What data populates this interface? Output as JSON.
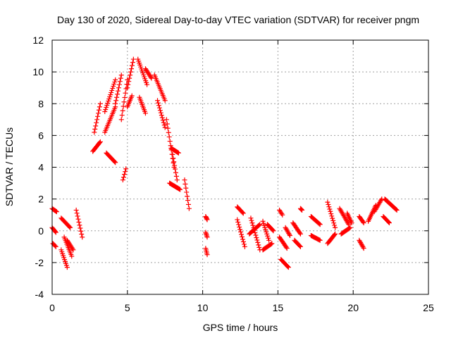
{
  "chart_data": {
    "type": "scatter",
    "title": "Day 130 of 2020, Sidereal Day-to-day VTEC variation (SDTVAR) for receiver pngm",
    "xlabel": "GPS time / hours",
    "ylabel": "SDTVAR / TECUs",
    "xlim": [
      0,
      25
    ],
    "ylim": [
      -4,
      12
    ],
    "xticks": [
      0,
      5,
      10,
      15,
      20,
      25
    ],
    "yticks": [
      -4,
      -2,
      0,
      2,
      4,
      6,
      8,
      10,
      12
    ],
    "grid": true,
    "marker": "+",
    "color": "#ff0000",
    "segments": [
      {
        "x": [
          0.0,
          0.3
        ],
        "y": [
          1.4,
          1.2
        ]
      },
      {
        "x": [
          0.0,
          0.25
        ],
        "y": [
          0.2,
          -0.1
        ]
      },
      {
        "x": [
          0.05,
          0.25
        ],
        "y": [
          -0.8,
          -1.0
        ]
      },
      {
        "x": [
          0.6,
          1.2
        ],
        "y": [
          0.8,
          0.2
        ]
      },
      {
        "x": [
          0.6,
          1.0
        ],
        "y": [
          -1.2,
          -2.3
        ]
      },
      {
        "x": [
          0.8,
          1.3
        ],
        "y": [
          -0.4,
          -1.6
        ]
      },
      {
        "x": [
          1.0,
          1.4
        ],
        "y": [
          -0.6,
          -1.2
        ]
      },
      {
        "x": [
          1.6,
          2.0
        ],
        "y": [
          1.3,
          -0.4
        ]
      },
      {
        "x": [
          2.7,
          3.2
        ],
        "y": [
          5.0,
          5.6
        ]
      },
      {
        "x": [
          2.8,
          3.2
        ],
        "y": [
          6.2,
          8.0
        ]
      },
      {
        "x": [
          3.5,
          4.2
        ],
        "y": [
          7.5,
          9.5
        ]
      },
      {
        "x": [
          3.5,
          4.2
        ],
        "y": [
          6.2,
          7.8
        ]
      },
      {
        "x": [
          3.6,
          4.2
        ],
        "y": [
          4.9,
          4.3
        ]
      },
      {
        "x": [
          4.2,
          4.6
        ],
        "y": [
          8.0,
          9.8
        ]
      },
      {
        "x": [
          4.6,
          5.0
        ],
        "y": [
          7.0,
          9.5
        ]
      },
      {
        "x": [
          4.7,
          4.9
        ],
        "y": [
          3.2,
          3.9
        ]
      },
      {
        "x": [
          5.0,
          5.4
        ],
        "y": [
          9.0,
          10.8
        ]
      },
      {
        "x": [
          5.0,
          5.3
        ],
        "y": [
          7.8,
          8.5
        ]
      },
      {
        "x": [
          5.7,
          6.3
        ],
        "y": [
          10.8,
          9.2
        ]
      },
      {
        "x": [
          5.8,
          6.2
        ],
        "y": [
          8.4,
          7.4
        ]
      },
      {
        "x": [
          6.2,
          6.6
        ],
        "y": [
          10.2,
          9.6
        ]
      },
      {
        "x": [
          6.8,
          7.5
        ],
        "y": [
          9.8,
          8.2
        ]
      },
      {
        "x": [
          7.0,
          7.5
        ],
        "y": [
          8.2,
          6.5
        ]
      },
      {
        "x": [
          7.6,
          8.1
        ],
        "y": [
          7.0,
          4.0
        ]
      },
      {
        "x": [
          7.9,
          8.4
        ],
        "y": [
          5.2,
          4.9
        ]
      },
      {
        "x": [
          7.8,
          8.5
        ],
        "y": [
          3.0,
          2.6
        ]
      },
      {
        "x": [
          8.0,
          8.3
        ],
        "y": [
          4.8,
          3.2
        ]
      },
      {
        "x": [
          8.8,
          9.1
        ],
        "y": [
          3.2,
          1.4
        ]
      },
      {
        "x": [
          10.2,
          10.3
        ],
        "y": [
          0.9,
          0.7
        ]
      },
      {
        "x": [
          10.2,
          10.3
        ],
        "y": [
          -0.1,
          -0.4
        ]
      },
      {
        "x": [
          10.2,
          10.3
        ],
        "y": [
          -1.1,
          -1.5
        ]
      },
      {
        "x": [
          12.3,
          12.7
        ],
        "y": [
          1.5,
          1.1
        ]
      },
      {
        "x": [
          12.3,
          12.8
        ],
        "y": [
          0.7,
          -1.0
        ]
      },
      {
        "x": [
          13.1,
          13.8
        ],
        "y": [
          -0.2,
          0.4
        ]
      },
      {
        "x": [
          13.2,
          13.8
        ],
        "y": [
          0.8,
          -1.2
        ]
      },
      {
        "x": [
          14.0,
          14.4
        ],
        "y": [
          0.6,
          -0.6
        ]
      },
      {
        "x": [
          14.0,
          14.6
        ],
        "y": [
          -1.2,
          -0.8
        ]
      },
      {
        "x": [
          14.3,
          14.7
        ],
        "y": [
          0.4,
          0.0
        ]
      },
      {
        "x": [
          15.1,
          15.3
        ],
        "y": [
          1.3,
          1.0
        ]
      },
      {
        "x": [
          15.1,
          15.6
        ],
        "y": [
          -0.4,
          -1.1
        ]
      },
      {
        "x": [
          15.2,
          15.7
        ],
        "y": [
          -1.8,
          -2.3
        ]
      },
      {
        "x": [
          15.5,
          15.8
        ],
        "y": [
          0.2,
          -0.3
        ]
      },
      {
        "x": [
          16.0,
          16.5
        ],
        "y": [
          0.5,
          -0.2
        ]
      },
      {
        "x": [
          16.1,
          16.5
        ],
        "y": [
          -0.6,
          -1.0
        ]
      },
      {
        "x": [
          16.5,
          16.6
        ],
        "y": [
          1.4,
          1.3
        ]
      },
      {
        "x": [
          17.2,
          17.8
        ],
        "y": [
          0.9,
          0.4
        ]
      },
      {
        "x": [
          17.2,
          17.8
        ],
        "y": [
          -0.3,
          -0.6
        ]
      },
      {
        "x": [
          18.3,
          18.8
        ],
        "y": [
          1.8,
          0.2
        ]
      },
      {
        "x": [
          18.3,
          18.8
        ],
        "y": [
          -0.8,
          -0.2
        ]
      },
      {
        "x": [
          19.1,
          19.7
        ],
        "y": [
          1.4,
          0.4
        ]
      },
      {
        "x": [
          19.2,
          19.8
        ],
        "y": [
          -0.2,
          0.2
        ]
      },
      {
        "x": [
          19.6,
          19.9
        ],
        "y": [
          1.1,
          0.5
        ]
      },
      {
        "x": [
          20.4,
          20.7
        ],
        "y": [
          0.9,
          0.5
        ]
      },
      {
        "x": [
          20.4,
          20.7
        ],
        "y": [
          -0.6,
          -1.1
        ]
      },
      {
        "x": [
          21.0,
          21.5
        ],
        "y": [
          0.6,
          1.6
        ]
      },
      {
        "x": [
          21.4,
          21.9
        ],
        "y": [
          1.2,
          2.0
        ]
      },
      {
        "x": [
          22.0,
          22.4
        ],
        "y": [
          0.9,
          0.5
        ]
      },
      {
        "x": [
          22.1,
          22.9
        ],
        "y": [
          2.0,
          1.3
        ]
      }
    ]
  }
}
